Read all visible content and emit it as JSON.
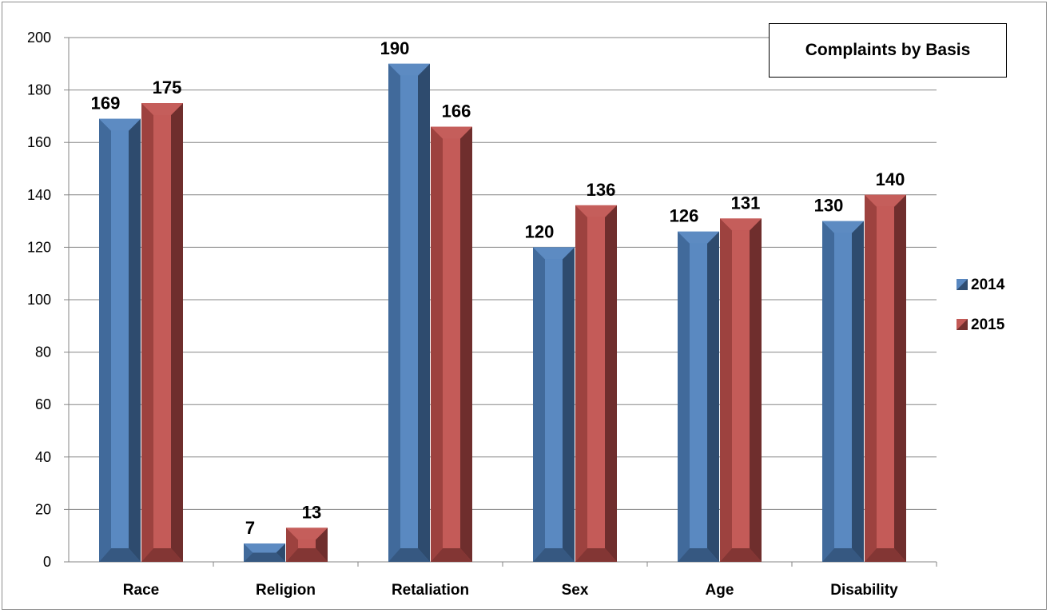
{
  "chart_data": {
    "type": "bar",
    "title": "Complaints by Basis",
    "categories": [
      "Race",
      "Religion",
      "Retaliation",
      "Sex",
      "Age",
      "Disability"
    ],
    "series": [
      {
        "name": "2014",
        "values": [
          169,
          7,
          190,
          120,
          126,
          130
        ],
        "color": "#4f81bd"
      },
      {
        "name": "2015",
        "values": [
          175,
          13,
          166,
          136,
          131,
          140
        ],
        "color": "#c0504d"
      }
    ],
    "ylim": [
      0,
      200
    ],
    "yticks": [
      0,
      20,
      40,
      60,
      80,
      100,
      120,
      140,
      160,
      180,
      200
    ],
    "grid": true,
    "legend": "right"
  }
}
